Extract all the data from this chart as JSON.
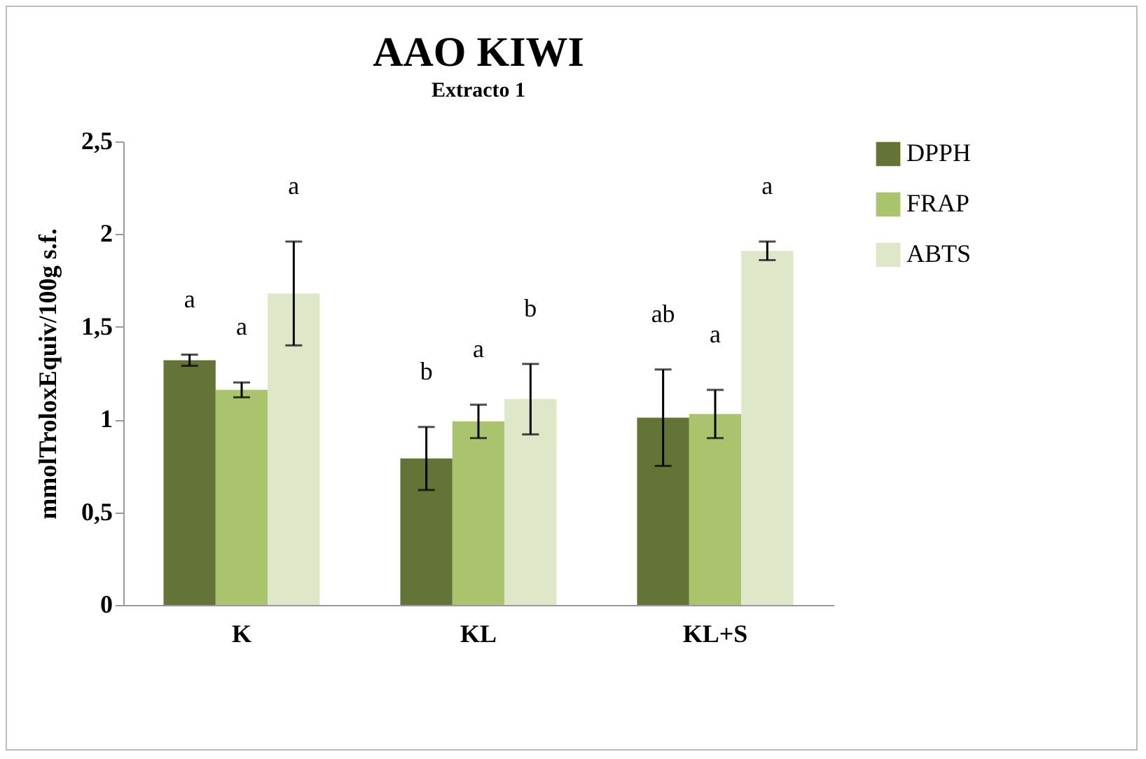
{
  "chart_data": {
    "type": "bar",
    "title": "AAO KIWI",
    "subtitle": "Extracto 1",
    "ylabel": "mmolTroloxEquiv/100g s.f.",
    "categories": [
      "K",
      "KL",
      "KL+S"
    ],
    "series": [
      {
        "name": "DPPH",
        "color": "#637436",
        "values": [
          1.32,
          0.79,
          1.01
        ],
        "errors": [
          0.03,
          0.17,
          0.26
        ]
      },
      {
        "name": "FRAP",
        "color": "#a9c46c",
        "values": [
          1.16,
          0.99,
          1.03
        ],
        "errors": [
          0.04,
          0.09,
          0.13
        ]
      },
      {
        "name": "ABTS",
        "color": "#dfe7c9",
        "values": [
          1.68,
          1.11,
          1.91
        ],
        "errors": [
          0.28,
          0.19,
          0.05
        ]
      }
    ],
    "ylim": [
      0,
      2.5
    ],
    "yticks": [
      0,
      {
        "value": 0.5,
        "label": "0,5"
      },
      1,
      {
        "value": 1.5,
        "label": "1,5"
      },
      2,
      {
        "value": 2.5,
        "label": "2,5"
      }
    ],
    "grid": false,
    "legend": "right",
    "annotations": [
      "a",
      "a",
      "a",
      "b",
      "a",
      "b",
      "ab",
      "a",
      "a"
    ]
  }
}
